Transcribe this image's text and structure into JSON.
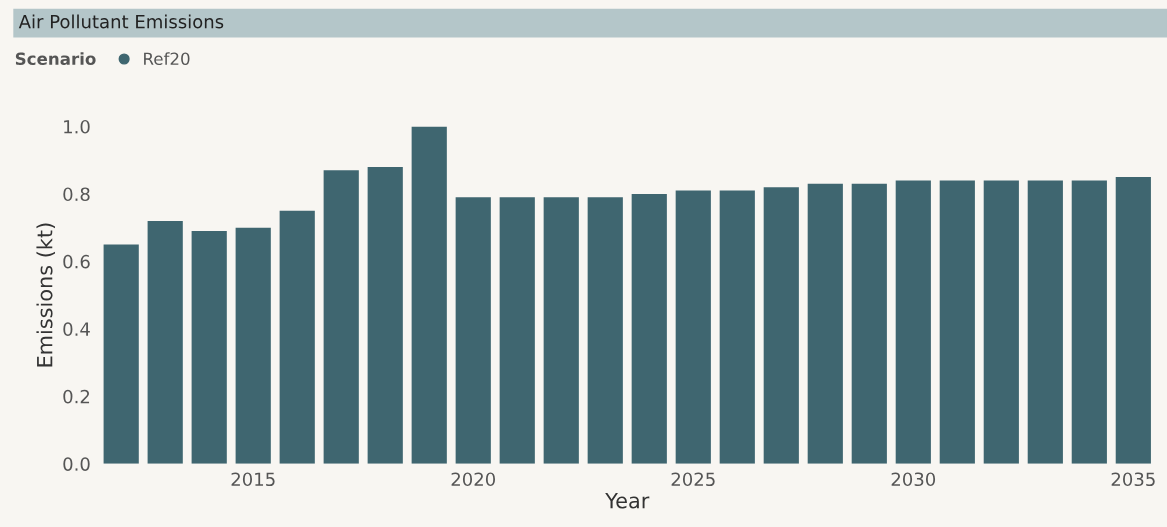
{
  "chart_data": {
    "type": "bar",
    "title": "Air Pollutant Emissions",
    "xlabel": "Year",
    "ylabel": "Emissions (kt)",
    "legend_title": "Scenario",
    "legend": "top left",
    "x": [
      2012,
      2013,
      2014,
      2015,
      2016,
      2017,
      2018,
      2019,
      2020,
      2021,
      2022,
      2023,
      2024,
      2025,
      2026,
      2027,
      2028,
      2029,
      2030,
      2031,
      2032,
      2033,
      2034,
      2035
    ],
    "series": [
      {
        "name": "Ref20",
        "color": "#3f6670",
        "values": [
          0.65,
          0.72,
          0.69,
          0.7,
          0.75,
          0.87,
          0.88,
          1.0,
          0.79,
          0.79,
          0.79,
          0.79,
          0.8,
          0.81,
          0.81,
          0.82,
          0.83,
          0.83,
          0.84,
          0.84,
          0.84,
          0.84,
          0.84,
          0.85
        ]
      }
    ],
    "xlim": [
      2011.5,
      2035.5
    ],
    "xticks": [
      2015,
      2020,
      2025,
      2030,
      2035
    ],
    "ylim": [
      0,
      1.0
    ],
    "yticks": [
      {
        "value": 0,
        "label": "0.0"
      },
      {
        "value": 0.2,
        "label": "0.2"
      },
      {
        "value": 0.4,
        "label": "0.4"
      },
      {
        "value": 0.6,
        "label": "0.6"
      },
      {
        "value": 0.8,
        "label": "0.8"
      },
      {
        "value": 1.0,
        "label": "1.0"
      }
    ],
    "grid": false
  }
}
